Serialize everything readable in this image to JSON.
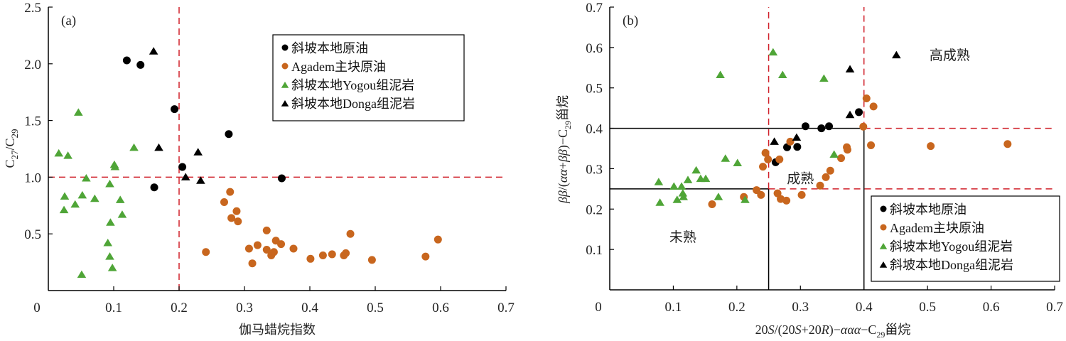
{
  "colors": {
    "slope_oil": "#000000",
    "agadem_oil": "#C8661E",
    "yogou_mudstone": "#4FA537",
    "donga_mudstone": "#000000",
    "threshold_dashed": "#D0202A",
    "boundary_solid": "#000000"
  },
  "chart_data": [
    {
      "type": "scatter",
      "panel_label": "(a)",
      "title": "",
      "xlabel": "伽马蜡烷指数",
      "ylabel_main": "C",
      "ylabel_sub1": "27",
      "ylabel_mid": "/C",
      "ylabel_sub2": "29",
      "xlim": [
        0,
        0.7
      ],
      "ylim": [
        0,
        2.5
      ],
      "xticks": [
        "0",
        "0.1",
        "0.2",
        "0.3",
        "0.4",
        "0.5",
        "0.6",
        "0.7"
      ],
      "xtick_values": [
        0,
        0.1,
        0.2,
        0.3,
        0.4,
        0.5,
        0.6,
        0.7
      ],
      "yticks": [
        "0.5",
        "1.0",
        "1.5",
        "2.0",
        "2.5"
      ],
      "ytick_values": [
        0.5,
        1.0,
        1.5,
        2.0,
        2.5
      ],
      "grid": false,
      "legend_position": "top-right",
      "reference_lines": [
        {
          "orientation": "vertical",
          "value": 0.2,
          "style": "dashed",
          "from": 0,
          "to": 2.5
        },
        {
          "orientation": "horizontal",
          "value": 1.0,
          "style": "dashed",
          "from": 0,
          "to": 0.7
        }
      ],
      "region_labels": [],
      "series": [
        {
          "name": "斜坡本地原油",
          "marker": "circle",
          "color_key": "slope_oil",
          "points": [
            [
              0.12,
              2.03
            ],
            [
              0.141,
              1.99
            ],
            [
              0.193,
              1.6
            ],
            [
              0.276,
              1.38
            ],
            [
              0.205,
              1.09
            ],
            [
              0.162,
              0.91
            ],
            [
              0.357,
              0.99
            ]
          ]
        },
        {
          "name": "Agadem主块原油",
          "marker": "circle",
          "color_key": "agadem_oil",
          "points": [
            [
              0.278,
              0.87
            ],
            [
              0.269,
              0.78
            ],
            [
              0.288,
              0.7
            ],
            [
              0.28,
              0.64
            ],
            [
              0.29,
              0.61
            ],
            [
              0.241,
              0.34
            ],
            [
              0.307,
              0.37
            ],
            [
              0.32,
              0.4
            ],
            [
              0.334,
              0.53
            ],
            [
              0.312,
              0.24
            ],
            [
              0.334,
              0.36
            ],
            [
              0.348,
              0.44
            ],
            [
              0.356,
              0.41
            ],
            [
              0.341,
              0.31
            ],
            [
              0.345,
              0.34
            ],
            [
              0.375,
              0.37
            ],
            [
              0.401,
              0.28
            ],
            [
              0.42,
              0.31
            ],
            [
              0.434,
              0.32
            ],
            [
              0.452,
              0.31
            ],
            [
              0.455,
              0.33
            ],
            [
              0.462,
              0.5
            ],
            [
              0.495,
              0.27
            ],
            [
              0.577,
              0.3
            ],
            [
              0.596,
              0.45
            ]
          ]
        },
        {
          "name": "斜坡本地Yogou组泥岩",
          "marker": "triangle",
          "color_key": "yogou_mudstone",
          "points": [
            [
              0.046,
              1.57
            ],
            [
              0.016,
              1.21
            ],
            [
              0.03,
              1.19
            ],
            [
              0.131,
              1.26
            ],
            [
              0.101,
              1.11
            ],
            [
              0.102,
              1.09
            ],
            [
              0.058,
              0.99
            ],
            [
              0.025,
              0.83
            ],
            [
              0.024,
              0.71
            ],
            [
              0.041,
              0.76
            ],
            [
              0.052,
              0.84
            ],
            [
              0.071,
              0.81
            ],
            [
              0.094,
              0.94
            ],
            [
              0.11,
              0.8
            ],
            [
              0.113,
              0.67
            ],
            [
              0.095,
              0.6
            ],
            [
              0.091,
              0.42
            ],
            [
              0.094,
              0.3
            ],
            [
              0.098,
              0.2
            ],
            [
              0.051,
              0.14
            ]
          ]
        },
        {
          "name": "斜坡本地Donga组泥岩",
          "marker": "triangle",
          "color_key": "donga_mudstone",
          "points": [
            [
              0.161,
              2.11
            ],
            [
              0.169,
              1.26
            ],
            [
              0.229,
              1.22
            ],
            [
              0.21,
              1.0
            ],
            [
              0.233,
              0.97
            ]
          ]
        }
      ]
    },
    {
      "type": "scatter",
      "panel_label": "(b)",
      "title": "",
      "xlabel_parts": [
        "20",
        "S",
        "/(20",
        "S",
        "+20",
        "R",
        ")−",
        "ααα",
        "−C",
        "29",
        "甾烷"
      ],
      "ylabel_parts": [
        "ββ",
        "/(",
        "αα",
        "+",
        "ββ",
        ")−C",
        "29",
        "甾烷"
      ],
      "xlim": [
        0,
        0.7
      ],
      "ylim": [
        0,
        0.7
      ],
      "xticks": [
        "0",
        "0.1",
        "0.2",
        "0.3",
        "0.4",
        "0.5",
        "0.6",
        "0.7"
      ],
      "xtick_values": [
        0,
        0.1,
        0.2,
        0.3,
        0.4,
        0.5,
        0.6,
        0.7
      ],
      "yticks": [
        "0.1",
        "0.2",
        "0.3",
        "0.4",
        "0.5",
        "0.6",
        "0.7"
      ],
      "ytick_values": [
        0.1,
        0.2,
        0.3,
        0.4,
        0.5,
        0.6,
        0.7
      ],
      "grid": false,
      "legend_position": "bottom-right",
      "reference_lines": [
        {
          "orientation": "horizontal",
          "value": 0.4,
          "style": "solid",
          "from": 0,
          "to": 0.4
        },
        {
          "orientation": "horizontal",
          "value": 0.25,
          "style": "solid",
          "from": 0,
          "to": 0.25
        },
        {
          "orientation": "vertical",
          "value": 0.25,
          "style": "solid",
          "from": 0,
          "to": 0.25
        },
        {
          "orientation": "vertical",
          "value": 0.4,
          "style": "solid",
          "from": 0,
          "to": 0.4
        },
        {
          "orientation": "vertical",
          "value": 0.25,
          "style": "dashed",
          "from": 0.25,
          "to": 0.7
        },
        {
          "orientation": "vertical",
          "value": 0.4,
          "style": "dashed",
          "from": 0.4,
          "to": 0.7
        },
        {
          "orientation": "horizontal",
          "value": 0.25,
          "style": "dashed",
          "from": 0.25,
          "to": 0.7
        },
        {
          "orientation": "horizontal",
          "value": 0.4,
          "style": "dashed",
          "from": 0.4,
          "to": 0.7
        }
      ],
      "region_labels": [
        {
          "text": "未熟",
          "x": 0.115,
          "y": 0.12
        },
        {
          "text": "成熟",
          "x": 0.3,
          "y": 0.265
        },
        {
          "text": "高成熟",
          "x": 0.535,
          "y": 0.57
        }
      ],
      "series": [
        {
          "name": "斜坡本地原油",
          "marker": "circle",
          "color_key": "slope_oil",
          "points": [
            [
              0.308,
              0.405
            ],
            [
              0.333,
              0.4
            ],
            [
              0.345,
              0.405
            ],
            [
              0.279,
              0.353
            ],
            [
              0.295,
              0.354
            ],
            [
              0.261,
              0.316
            ],
            [
              0.392,
              0.44
            ]
          ]
        },
        {
          "name": "Agadem主块原油",
          "marker": "circle",
          "color_key": "agadem_oil",
          "points": [
            [
              0.399,
              0.404
            ],
            [
              0.284,
              0.367
            ],
            [
              0.245,
              0.339
            ],
            [
              0.249,
              0.323
            ],
            [
              0.267,
              0.323
            ],
            [
              0.241,
              0.305
            ],
            [
              0.373,
              0.353
            ],
            [
              0.374,
              0.347
            ],
            [
              0.364,
              0.326
            ],
            [
              0.347,
              0.295
            ],
            [
              0.34,
              0.279
            ],
            [
              0.331,
              0.258
            ],
            [
              0.411,
              0.358
            ],
            [
              0.302,
              0.235
            ],
            [
              0.264,
              0.239
            ],
            [
              0.269,
              0.225
            ],
            [
              0.278,
              0.221
            ],
            [
              0.231,
              0.247
            ],
            [
              0.238,
              0.235
            ],
            [
              0.404,
              0.474
            ],
            [
              0.415,
              0.454
            ],
            [
              0.505,
              0.356
            ],
            [
              0.626,
              0.361
            ],
            [
              0.161,
              0.212
            ],
            [
              0.211,
              0.23
            ]
          ]
        },
        {
          "name": "斜坡本地Yogou组泥岩",
          "marker": "triangle",
          "color_key": "yogou_mudstone",
          "points": [
            [
              0.077,
              0.267
            ],
            [
              0.079,
              0.216
            ],
            [
              0.101,
              0.256
            ],
            [
              0.106,
              0.223
            ],
            [
              0.113,
              0.256
            ],
            [
              0.115,
              0.239
            ],
            [
              0.116,
              0.23
            ],
            [
              0.123,
              0.272
            ],
            [
              0.136,
              0.296
            ],
            [
              0.143,
              0.275
            ],
            [
              0.151,
              0.275
            ],
            [
              0.171,
              0.23
            ],
            [
              0.182,
              0.325
            ],
            [
              0.201,
              0.314
            ],
            [
              0.213,
              0.223
            ],
            [
              0.174,
              0.532
            ],
            [
              0.257,
              0.588
            ],
            [
              0.272,
              0.532
            ],
            [
              0.353,
              0.335
            ],
            [
              0.337,
              0.523
            ]
          ]
        },
        {
          "name": "斜坡本地Donga组泥岩",
          "marker": "triangle",
          "color_key": "donga_mudstone",
          "points": [
            [
              0.259,
              0.367
            ],
            [
              0.294,
              0.377
            ],
            [
              0.378,
              0.433
            ],
            [
              0.378,
              0.546
            ],
            [
              0.451,
              0.581
            ]
          ]
        }
      ]
    }
  ]
}
